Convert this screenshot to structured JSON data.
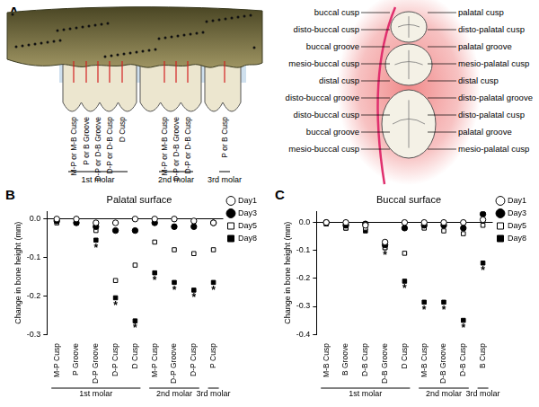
{
  "diagram": {
    "panel_label": "A",
    "side_view": {
      "teeth": [
        {
          "name": "1st molar",
          "sites": [
            "M-P or M-B Cusp",
            "P or B Groove",
            "D-P or D-B Groove",
            "D-P or D-B Cusp",
            "D Cusp"
          ]
        },
        {
          "name": "2nd molar",
          "sites": [
            "M-P or M-B Cusp",
            "D-P or D-B Groove",
            "D-P or D-B Cusp"
          ]
        },
        {
          "name": "3rd molar",
          "sites": [
            "P or B Cusp"
          ]
        }
      ]
    },
    "occlusal_view": {
      "buccal_labels": [
        "buccal cusp",
        "disto-buccal cusp",
        "buccal groove",
        "mesio-buccal cusp",
        "distal cusp",
        "disto-buccal groove",
        "disto-buccal cusp",
        "buccal groove",
        "mesio-buccal cusp"
      ],
      "palatal_labels": [
        "palatal cusp",
        "disto-palatal cusp",
        "palatal groove",
        "mesio-palatal cusp",
        "distal cusp",
        "disto-palatal groove",
        "disto-palatal cusp",
        "palatal groove",
        "mesio-palatal cusp"
      ]
    }
  },
  "chart_data": [
    {
      "panel_label": "B",
      "type": "scatter",
      "title": "Palatal surface",
      "y_label": "Change in bone height (mm)",
      "categories": [
        "M-P Cusp",
        "P Groove",
        "D-P Groove",
        "D-P Cusp",
        "D Cusp",
        "M-P Cusp",
        "D-P Groove",
        "D-P Cusp",
        "P Cusp"
      ],
      "category_groups": [
        {
          "name": "1st molar",
          "size": 5
        },
        {
          "name": "2nd molar",
          "size": 3
        },
        {
          "name": "3rd molar",
          "size": 1
        }
      ],
      "ylim": [
        -0.3,
        0.02
      ],
      "yticks": [
        {
          "value": 0,
          "label": "0.0"
        },
        {
          "value": -0.1,
          "label": "-0.1"
        },
        {
          "value": -0.2,
          "label": "-0.2"
        },
        {
          "value": -0.3,
          "label": "-0.3"
        }
      ],
      "grid": false,
      "legend": "right",
      "series": [
        {
          "name": "Day1",
          "color": "#000000",
          "marker": "open_circle",
          "values": [
            0,
            0,
            -0.01,
            -0.01,
            0,
            0,
            0,
            -0.005,
            -0.01
          ]
        },
        {
          "name": "Day3",
          "color": "#000000",
          "marker": "circle",
          "values": [
            -0.005,
            -0.01,
            -0.02,
            -0.03,
            -0.03,
            -0.01,
            -0.02,
            -0.02,
            -0.01
          ]
        },
        {
          "name": "Day5",
          "color": "#000000",
          "marker": "open_square",
          "values": [
            -0.01,
            -0.005,
            -0.03,
            -0.16,
            -0.12,
            -0.06,
            -0.08,
            -0.09,
            -0.08
          ]
        },
        {
          "name": "Day8",
          "color": "#000000",
          "marker": "square",
          "values": [
            -0.005,
            -0.01,
            -0.055,
            -0.205,
            -0.265,
            -0.14,
            -0.165,
            -0.185,
            -0.165
          ],
          "annotations": [
            null,
            null,
            "*",
            "*",
            "*",
            "*",
            "*",
            "*",
            "*"
          ]
        }
      ]
    },
    {
      "panel_label": "C",
      "type": "scatter",
      "title": "Buccal surface",
      "y_label": "Change in bone height (mm)",
      "categories": [
        "M-B Cusp",
        "B Groove",
        "D-B Cusp",
        "D-B Groove",
        "D Cusp",
        "M-B Cusp",
        "D-B Groove",
        "D-B Cusp",
        "B Cusp"
      ],
      "category_groups": [
        {
          "name": "1st molar",
          "size": 5
        },
        {
          "name": "2nd molar",
          "size": 3
        },
        {
          "name": "3rd molar",
          "size": 1
        }
      ],
      "ylim": [
        -0.4,
        0.04
      ],
      "yticks": [
        {
          "value": 0,
          "label": "0.0"
        },
        {
          "value": -0.1,
          "label": "-0.1"
        },
        {
          "value": -0.2,
          "label": "-0.2"
        },
        {
          "value": -0.3,
          "label": "-0.3"
        },
        {
          "value": -0.4,
          "label": "-0.4"
        }
      ],
      "grid": false,
      "legend": "right",
      "series": [
        {
          "name": "Day1",
          "color": "#000000",
          "marker": "open_circle",
          "values": [
            0,
            0,
            -0.01,
            -0.07,
            0,
            0,
            0,
            0,
            0.01
          ]
        },
        {
          "name": "Day3",
          "color": "#000000",
          "marker": "circle",
          "values": [
            0,
            -0.01,
            -0.005,
            -0.08,
            -0.02,
            -0.01,
            -0.01,
            -0.02,
            0.03
          ]
        },
        {
          "name": "Day5",
          "color": "#000000",
          "marker": "open_square",
          "values": [
            -0.005,
            -0.02,
            -0.02,
            -0.09,
            -0.11,
            -0.02,
            -0.03,
            -0.04,
            -0.01
          ]
        },
        {
          "name": "Day8",
          "color": "#000000",
          "marker": "square",
          "values": [
            -0.005,
            -0.02,
            -0.03,
            -0.09,
            -0.21,
            -0.285,
            -0.285,
            -0.35,
            -0.145
          ],
          "annotations": [
            null,
            null,
            null,
            "*",
            "*",
            "*",
            "*",
            "*",
            "*"
          ]
        }
      ]
    }
  ]
}
